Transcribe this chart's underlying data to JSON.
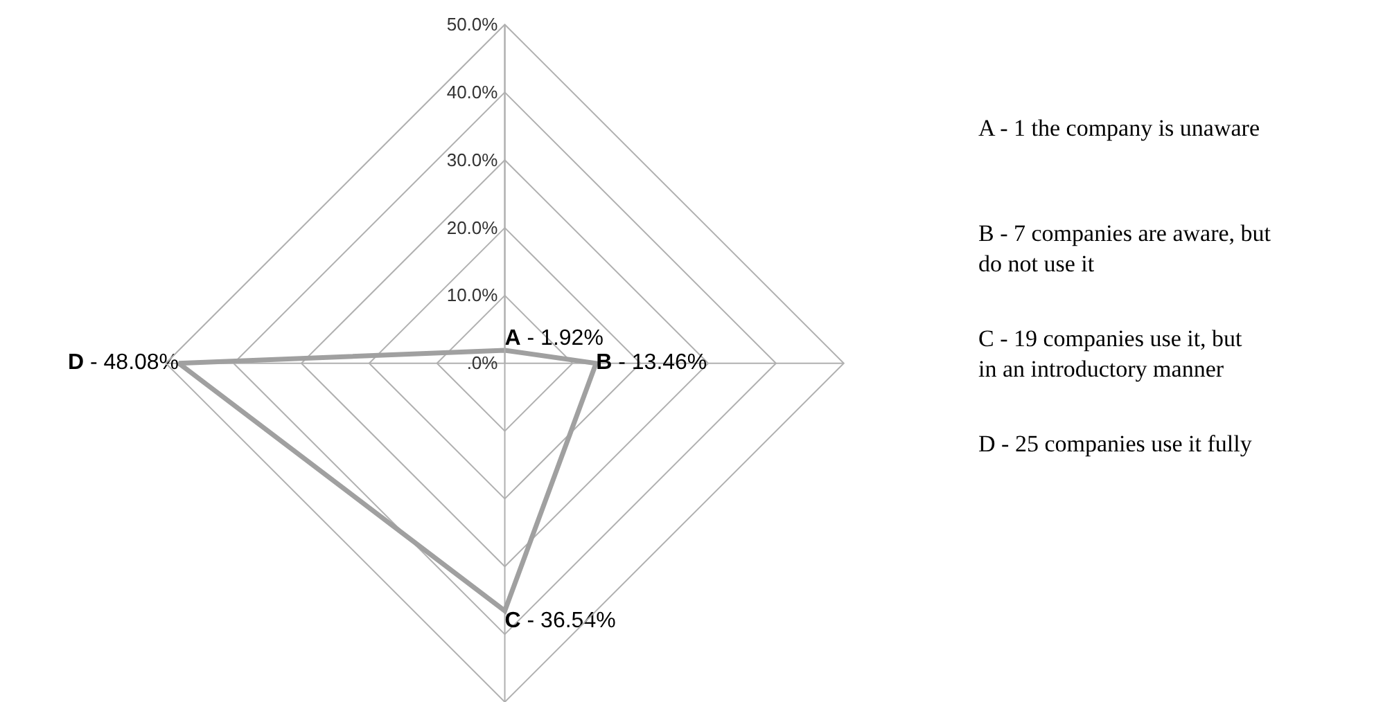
{
  "chart_data": {
    "type": "radar",
    "categories": [
      "A",
      "B",
      "C",
      "D"
    ],
    "series": [
      {
        "color": "#a0a0a0",
        "values": [
          1.92,
          13.46,
          36.54,
          48.08
        ]
      }
    ],
    "value_labels": [
      "- 1.92%",
      "- 13.46%",
      "- 36.54%",
      "- 48.08%"
    ],
    "ylim": [
      0,
      50
    ],
    "yticks": [
      {
        "value": 0,
        "label": ".0%"
      },
      {
        "value": 10,
        "label": "10.0%"
      },
      {
        "value": 20,
        "label": "20.0%"
      },
      {
        "value": 30,
        "label": "30.0%"
      },
      {
        "value": 40,
        "label": "40.0%"
      },
      {
        "value": 50,
        "label": "50.0%"
      }
    ],
    "grid": true,
    "marker": "none",
    "line_style": "solid",
    "annotations": [
      "A - 1 the company is unaware",
      "B - 7 companies are aware, but do not use it",
      "C - 19 companies use it, but in an introductory manner",
      "D - 25 companies use it fully"
    ]
  }
}
